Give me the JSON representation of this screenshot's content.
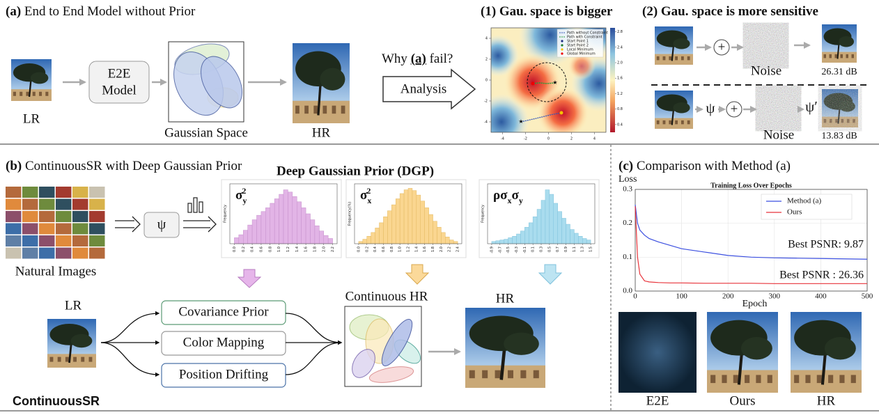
{
  "panel_a": {
    "label": "(a)",
    "title": "End to End Model without Prior",
    "lr": "LR",
    "model": [
      "E2E",
      "Model"
    ],
    "gaussian_space": "Gaussian Space",
    "hr": "HR",
    "question": [
      "Why",
      "(a)",
      "fail?"
    ],
    "analysis": "Analysis"
  },
  "panel_1": {
    "label": "(1)",
    "title": "Gau. space is bigger",
    "legend": [
      "Path without Constraint",
      "Path with Constraint",
      "Start Point 1",
      "Start Point 2",
      "Local Minimum",
      "Global Minimum"
    ],
    "xlim": [
      -5,
      5
    ],
    "ylim": [
      -5,
      5
    ],
    "xticks": [
      -4,
      -2,
      0,
      2,
      4
    ],
    "yticks": [
      -4,
      -2,
      0,
      2,
      4
    ],
    "colorbar_lim": [
      0.2,
      2.9
    ],
    "colorbar_ticks": [
      0.4,
      0.8,
      1.2,
      1.6,
      {
        "value": 2,
        "label": "2.0"
      },
      2.4,
      2.8
    ]
  },
  "panel_2": {
    "label": "(2)",
    "title": "Gau. space is more sensitive",
    "plus": "+",
    "noise": "Noise",
    "psi": "ψ",
    "psi_prime": "ψ′",
    "psnr_clean": "26.31 dB",
    "psnr_psi": "13.83 dB"
  },
  "panel_b": {
    "label": "(b)",
    "title": "ContinuousSR with Deep Gaussian Prior",
    "natural_images": "Natural Images",
    "psi": "ψ",
    "dgp_title": "Deep Gaussian Prior (DGP)",
    "histograms": [
      {
        "label": [
          {
            "text": "σ"
          },
          {
            "text": "y",
            "script": "sub"
          },
          {
            "text": "2",
            "script": "sup"
          }
        ],
        "y_label": "Frequency",
        "color": "#e2b4e6",
        "edge": "#c58fcb",
        "xlim": [
          -0.1,
          2.3
        ],
        "ylim": [
          0,
          8
        ],
        "bins": [
          0.0,
          0.1,
          0.2,
          0.3,
          0.4,
          0.5,
          0.6,
          0.7,
          0.8,
          0.9,
          1.0,
          1.1,
          1.2,
          1.3,
          1.4,
          1.5,
          1.6,
          1.7,
          1.8,
          1.9,
          2.0,
          2.1,
          2.2
        ],
        "values": [
          0.8,
          1.2,
          1.8,
          2.5,
          3.2,
          3.8,
          4.3,
          4.8,
          5.4,
          6.0,
          6.6,
          7.2,
          6.9,
          6.3,
          5.6,
          4.8,
          4.0,
          3.2,
          2.4,
          1.7,
          1.1,
          0.7
        ],
        "xticks": [
          {
            "value": 0,
            "label": "0.0"
          },
          0.2,
          0.4,
          0.6,
          0.8,
          {
            "value": 1,
            "label": "1.0"
          },
          1.2,
          1.4,
          1.6,
          1.8,
          {
            "value": 2,
            "label": "2.0"
          },
          2.2
        ]
      },
      {
        "label": [
          {
            "text": "σ"
          },
          {
            "text": "x",
            "script": "sub"
          },
          {
            "text": "2",
            "script": "sup"
          }
        ],
        "y_label": "Frequency(%)",
        "color": "#fad690",
        "edge": "#e3b860",
        "xlim": [
          -0.1,
          2.5
        ],
        "ylim": [
          0,
          8
        ],
        "bins": [
          0.0,
          0.1,
          0.2,
          0.3,
          0.4,
          0.5,
          0.6,
          0.7,
          0.8,
          0.9,
          1.0,
          1.1,
          1.2,
          1.3,
          1.4,
          1.5,
          1.6,
          1.7,
          1.8,
          1.9,
          2.0,
          2.1,
          2.2,
          2.3,
          2.4
        ],
        "values": [
          0.3,
          0.6,
          1.0,
          1.5,
          2.1,
          2.8,
          3.6,
          4.4,
          5.2,
          6.0,
          6.7,
          7.2,
          7.4,
          7.1,
          6.5,
          5.7,
          4.8,
          3.9,
          3.0,
          2.2,
          1.5,
          0.9,
          0.5,
          0.3
        ],
        "xticks": [
          {
            "value": 0,
            "label": "0.0"
          },
          0.2,
          0.4,
          0.6,
          0.8,
          {
            "value": 1,
            "label": "1.0"
          },
          1.2,
          1.4,
          1.6,
          1.8,
          {
            "value": 2,
            "label": "2.0"
          },
          2.2,
          2.4
        ]
      },
      {
        "label": [
          {
            "text": "ρσ"
          },
          {
            "text": "x",
            "script": "sub"
          },
          {
            "text": "σ"
          },
          {
            "text": "y",
            "script": "sub"
          }
        ],
        "y_label": "Frequency",
        "color": "#a9dcee",
        "edge": "#7fc2dc",
        "xlim": [
          -1.0,
          1.6
        ],
        "ylim": [
          0,
          8
        ],
        "bins": [
          -0.9,
          -0.8,
          -0.7,
          -0.6,
          -0.5,
          -0.4,
          -0.3,
          -0.2,
          -0.1,
          0.0,
          0.1,
          0.2,
          0.3,
          0.4,
          0.5,
          0.6,
          0.7,
          0.8,
          0.9,
          1.0,
          1.1,
          1.2,
          1.3,
          1.4,
          1.5
        ],
        "values": [
          0.3,
          0.4,
          0.5,
          0.6,
          0.8,
          1.0,
          1.3,
          1.7,
          2.2,
          2.8,
          3.6,
          4.6,
          5.8,
          7.2,
          6.6,
          5.4,
          4.3,
          3.4,
          2.6,
          1.9,
          1.4,
          1.0,
          0.7,
          0.5
        ],
        "xticks": [
          -0.9,
          -0.7,
          -0.5,
          -0.3,
          -0.1,
          0.1,
          0.3,
          0.5,
          0.7,
          0.9,
          1.1,
          1.3,
          1.5
        ]
      }
    ],
    "lr": "LR",
    "branches": [
      "Covariance Prior",
      "Color Mapping",
      "Position Drifting"
    ],
    "continuous_hr": "Continuous HR",
    "hr": "HR",
    "method_name": "ContinuousSR"
  },
  "panel_c": {
    "label": "(c)",
    "title": "Comparison with Method (a)",
    "chart": {
      "type": "line",
      "title": "Training Loss Over Epochs",
      "y_label": "Loss",
      "x_label": "Epoch",
      "xlim": [
        0,
        500
      ],
      "ylim": [
        0,
        0.3
      ],
      "xticks": [
        0,
        100,
        200,
        300,
        400,
        500
      ],
      "yticks": [
        {
          "value": 0,
          "label": "0.0"
        },
        0.1,
        0.2,
        0.3
      ],
      "grid": true,
      "x": [
        0,
        5,
        10,
        20,
        30,
        50,
        75,
        100,
        150,
        200,
        250,
        300,
        350,
        400,
        450,
        500
      ],
      "series": [
        {
          "name": "Method (a)",
          "color": "#3b4fe0",
          "values": [
            0.255,
            0.2,
            0.18,
            0.165,
            0.155,
            0.145,
            0.135,
            0.125,
            0.115,
            0.105,
            0.1,
            0.098,
            0.097,
            0.096,
            0.095,
            0.094
          ]
        },
        {
          "name": "Ours",
          "color": "#e8333a",
          "values": [
            0.25,
            0.1,
            0.05,
            0.03,
            0.027,
            0.025,
            0.024,
            0.024,
            0.023,
            0.023,
            0.023,
            0.022,
            0.022,
            0.022,
            0.022,
            0.022
          ]
        }
      ],
      "annotations": [
        {
          "text": "Best PSNR: 9.87",
          "color": "#3b4fe0"
        },
        {
          "text": "Best PSNR : 26.36",
          "color": "#e8333a"
        }
      ]
    },
    "images": [
      "E2E",
      "Ours",
      "HR"
    ]
  }
}
